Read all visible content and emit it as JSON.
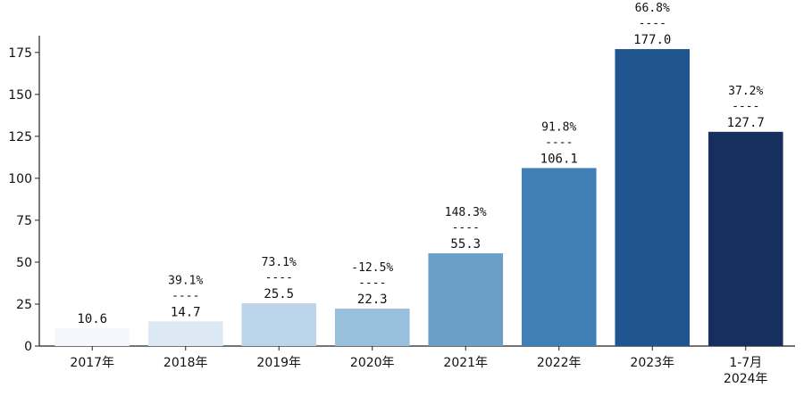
{
  "chart_data": {
    "type": "bar",
    "categories": [
      "2017年",
      "2018年",
      "2019年",
      "2020年",
      "2021年",
      "2022年",
      "2023年",
      "2024年1-7月"
    ],
    "category_lines": [
      [
        "2017年"
      ],
      [
        "2018年"
      ],
      [
        "2019年"
      ],
      [
        "2020年"
      ],
      [
        "2021年"
      ],
      [
        "2022年"
      ],
      [
        "2023年"
      ],
      [
        "1-7月",
        "2024年"
      ]
    ],
    "values": [
      10.6,
      14.7,
      25.5,
      22.3,
      55.3,
      106.1,
      177.0,
      127.7
    ],
    "value_labels": [
      "10.6",
      "14.7",
      "25.5",
      "22.3",
      "55.3",
      "106.1",
      "177.0",
      "127.7"
    ],
    "growth_labels": [
      "",
      "39.1%",
      "73.1%",
      "-12.5%",
      "148.3%",
      "91.8%",
      "66.8%",
      "37.2%"
    ],
    "separator": "----",
    "bar_colors": [
      "#f4f8fc",
      "#dce8f3",
      "#bcd5ea",
      "#98bfdc",
      "#6a9fc7",
      "#3f7fb5",
      "#20558f",
      "#162f5e"
    ],
    "ylim": [
      0,
      185
    ],
    "yticks": [
      0,
      25,
      50,
      75,
      100,
      125,
      150,
      175
    ],
    "title": "",
    "xlabel": "",
    "ylabel": "",
    "grid": false,
    "legend": "none"
  }
}
